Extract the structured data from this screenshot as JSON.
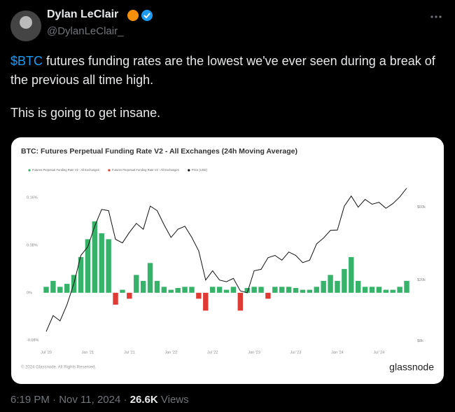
{
  "tweet": {
    "author_name": "Dylan LeClair",
    "handle": "@DylanLeClair_",
    "cashtag": "$BTC",
    "text_line1": " futures funding rates are the lowest we've ever seen during a break of the previous all time high.",
    "text_line2": "This is going to get insane.",
    "time": "6:19 PM",
    "separator": "·",
    "date": "Nov 11, 2024",
    "views": "26.6K",
    "views_label": "Views"
  },
  "chart_data": {
    "type": "bar-line",
    "title": "BTC: Futures Perpetual Funding Rate V2 - All Exchanges (24h Moving Average)",
    "x": [
      "2020-07",
      "2020-08",
      "2020-09",
      "2020-10",
      "2020-11",
      "2020-12",
      "2021-01",
      "2021-02",
      "2021-03",
      "2021-04",
      "2021-05",
      "2021-06",
      "2021-07",
      "2021-08",
      "2021-09",
      "2021-10",
      "2021-11",
      "2021-12",
      "2022-01",
      "2022-02",
      "2022-03",
      "2022-04",
      "2022-05",
      "2022-06",
      "2022-07",
      "2022-08",
      "2022-09",
      "2022-10",
      "2022-11",
      "2022-12",
      "2023-01",
      "2023-02",
      "2023-03",
      "2023-04",
      "2023-05",
      "2023-06",
      "2023-07",
      "2023-08",
      "2023-09",
      "2023-10",
      "2023-11",
      "2023-12",
      "2024-01",
      "2024-02",
      "2024-03",
      "2024-04",
      "2024-05",
      "2024-06",
      "2024-07",
      "2024-08",
      "2024-09",
      "2024-10",
      "2024-11"
    ],
    "series": [
      {
        "name": "Futures Perpetual Funding Rate V2 - All Exchanges",
        "color": "#36b26a",
        "values": [
          0.01,
          0.02,
          0.01,
          0.015,
          0.03,
          0.06,
          0.09,
          0.12,
          0.1,
          0.09,
          null,
          0.005,
          null,
          0.03,
          0.02,
          0.05,
          0.02,
          0.01,
          0.005,
          0.008,
          0.01,
          0.01,
          null,
          null,
          0.01,
          0.01,
          0.005,
          0.01,
          null,
          0.008,
          0.01,
          0.01,
          null,
          0.01,
          0.01,
          0.01,
          0.008,
          0.005,
          0.005,
          0.01,
          0.02,
          0.03,
          0.02,
          0.04,
          0.06,
          0.02,
          0.01,
          0.01,
          0.01,
          0.005,
          0.005,
          0.01,
          0.02
        ]
      },
      {
        "name": "Futures Perpetual Funding Rate V2 - All Exchanges",
        "color": "#e03a34",
        "values": [
          null,
          null,
          null,
          null,
          null,
          null,
          null,
          null,
          null,
          null,
          -0.02,
          null,
          -0.01,
          null,
          null,
          null,
          null,
          null,
          null,
          null,
          null,
          null,
          -0.01,
          -0.03,
          null,
          null,
          null,
          null,
          -0.03,
          null,
          null,
          null,
          -0.01,
          null,
          null,
          null,
          null,
          null,
          null,
          null,
          null,
          null,
          null,
          null,
          null,
          null,
          null,
          null,
          null,
          null,
          null,
          null,
          null
        ]
      },
      {
        "name": "Price [USD]",
        "color": "#111111",
        "axis": "y2",
        "values": [
          9200,
          11700,
          10800,
          13800,
          19000,
          29000,
          33000,
          45000,
          58000,
          57000,
          37000,
          35000,
          41000,
          47000,
          43000,
          61000,
          57000,
          46000,
          38000,
          43000,
          45000,
          38000,
          31000,
          20000,
          23000,
          20000,
          19500,
          20500,
          17000,
          16500,
          23000,
          23500,
          28000,
          29000,
          27000,
          30500,
          29000,
          26000,
          27000,
          34500,
          37700,
          42300,
          42500,
          61000,
          71000,
          60000,
          67500,
          62700,
          64600,
          59000,
          63300,
          70000,
          80000
        ]
      }
    ],
    "xlim": [
      "2020-07",
      "2024-11"
    ],
    "xticks": [
      {
        "value": "2020-07",
        "label": "Jul '20"
      },
      {
        "value": "2021-01",
        "label": "Jan '21"
      },
      {
        "value": "2021-07",
        "label": "Jul '21"
      },
      {
        "value": "2022-01",
        "label": "Jan '22"
      },
      {
        "value": "2022-07",
        "label": "Jul '22"
      },
      {
        "value": "2023-01",
        "label": "Jan '23"
      },
      {
        "value": "2023-07",
        "label": "Jul '23"
      },
      {
        "value": "2024-01",
        "label": "Jan '24"
      },
      {
        "value": "2024-07",
        "label": "Jul '24"
      }
    ],
    "ylim": [
      -0.085,
      0.18
    ],
    "yticks": [
      {
        "value": -0.08,
        "label": "-0.08%"
      },
      {
        "value": 0,
        "label": "0%"
      },
      {
        "value": 0.08,
        "label": "0.08%"
      },
      {
        "value": 0.16,
        "label": "0.16%"
      }
    ],
    "y2lim": [
      7700,
      83000
    ],
    "y2scale": "log",
    "y2ticks": [
      {
        "value": 8000,
        "label": "$8k"
      },
      {
        "value": 20000,
        "label": "$20k"
      },
      {
        "value": 60000,
        "label": "$60k"
      }
    ],
    "grid": false,
    "footer": "© 2024 Glassnode. All Rights Reserved.",
    "brand": "glassnode"
  }
}
